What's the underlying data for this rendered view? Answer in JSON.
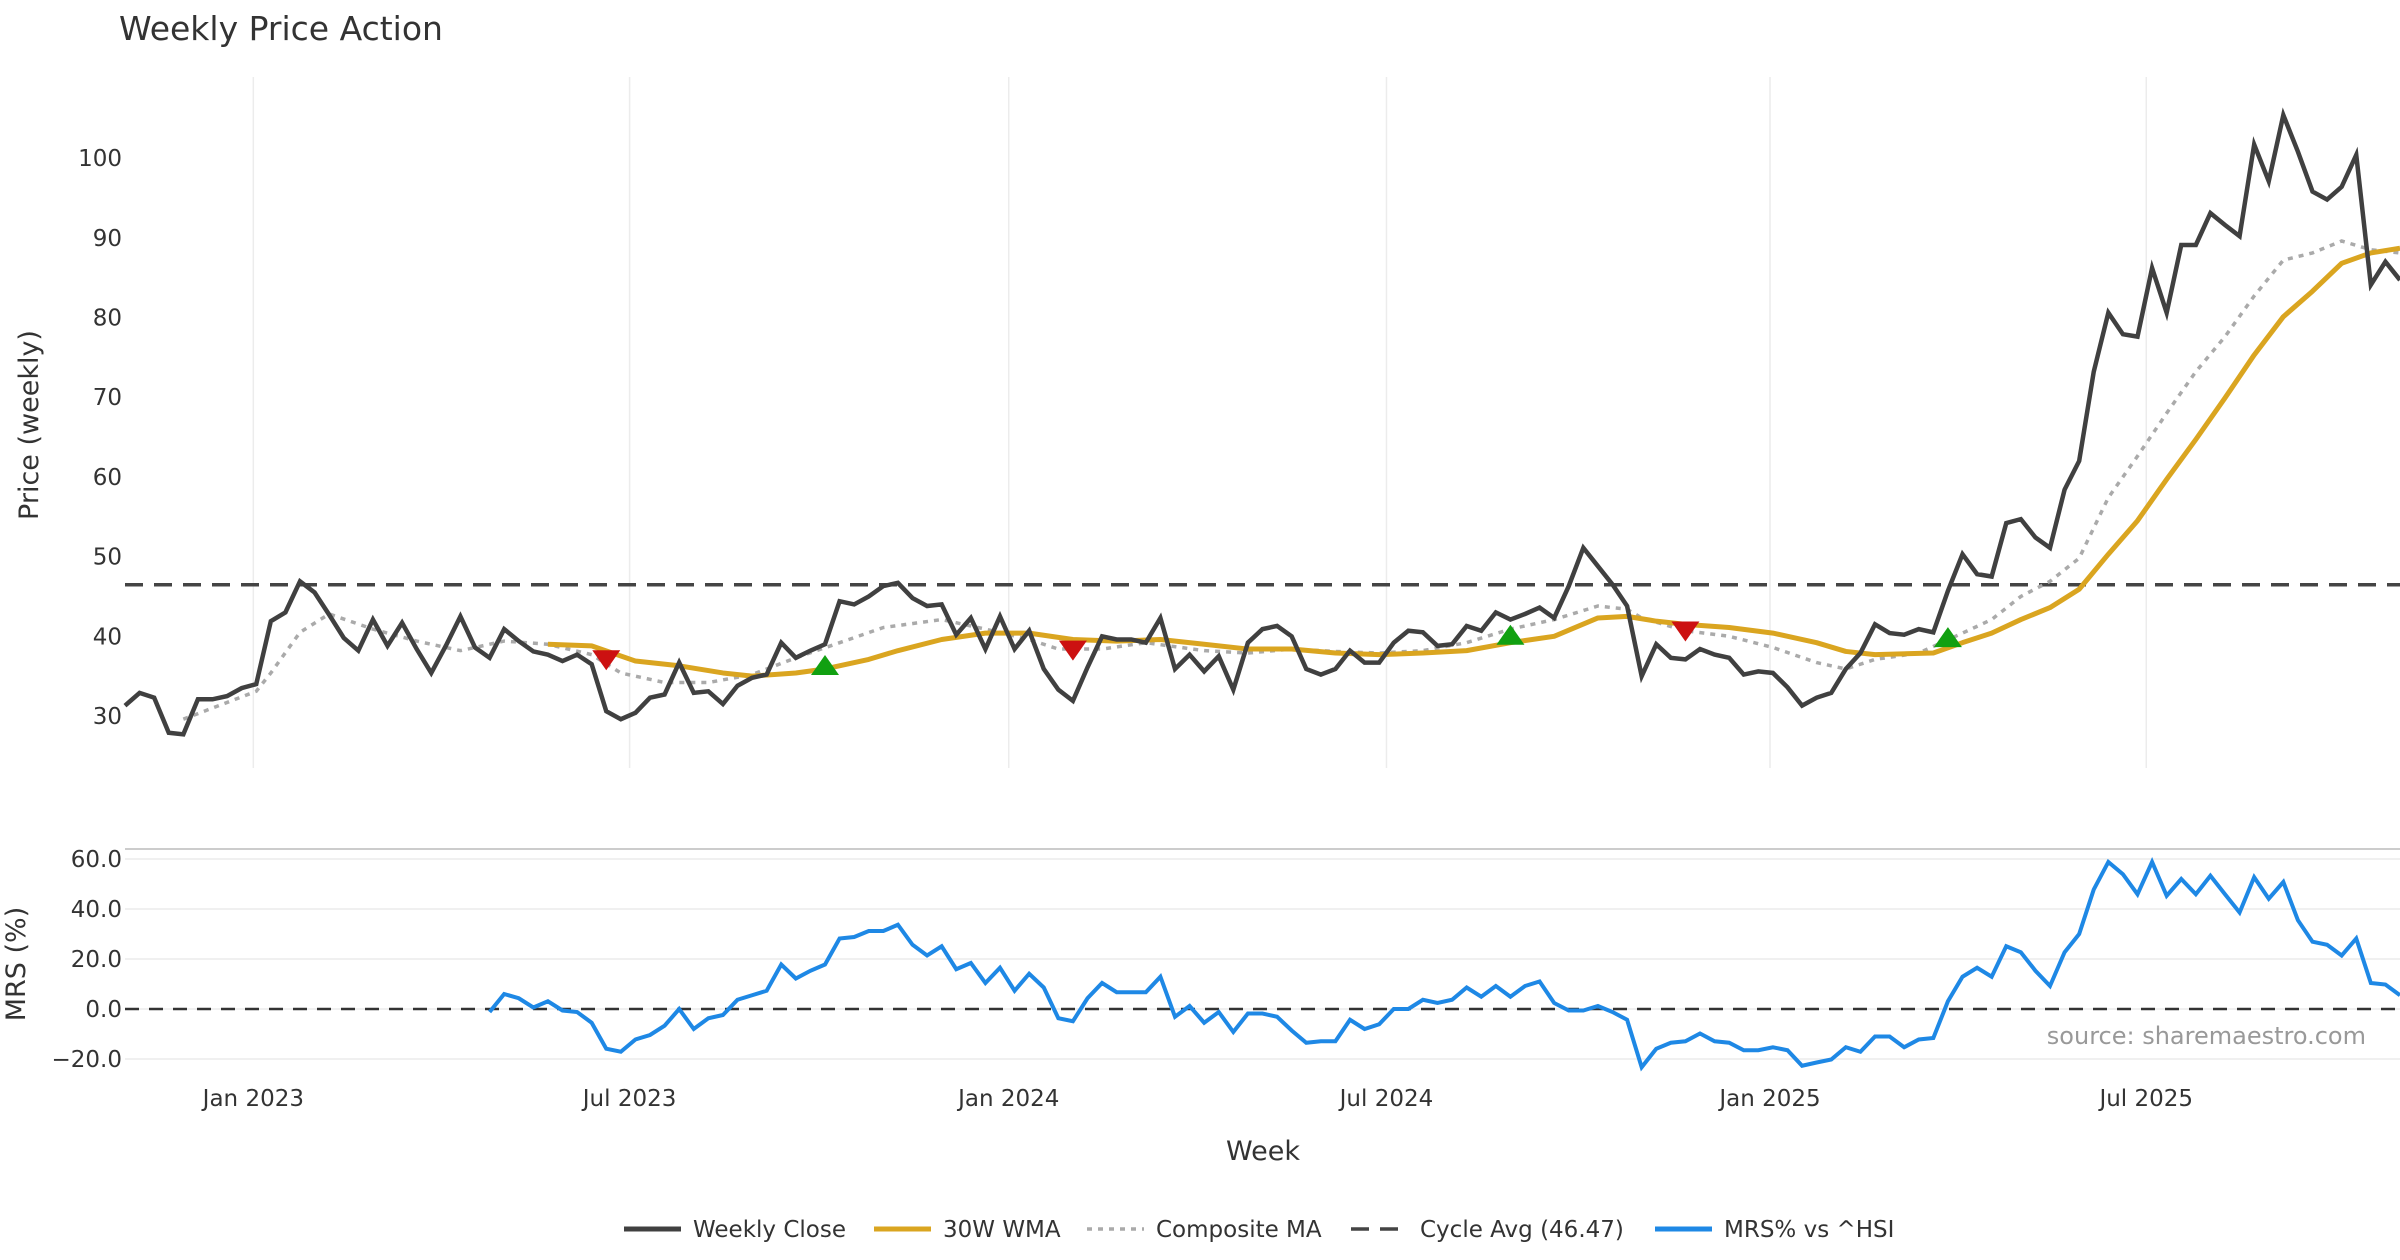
{
  "chart_data": [
    {
      "type": "line",
      "title": "Weekly Price Action",
      "ylabel": "Price (weekly)",
      "xlabel": "Week",
      "ylim": [
        23,
        110
      ],
      "yticks": [
        "30",
        "40",
        "50",
        "60",
        "70",
        "80",
        "90",
        "100"
      ],
      "ytick_values": [
        30,
        40,
        50,
        60,
        70,
        80,
        90,
        100
      ],
      "xticks": [
        "Jan 2023",
        "Jul 2023",
        "Jan 2024",
        "Jul 2024",
        "Jan 2025",
        "Jul 2025"
      ],
      "xtick_week_index": [
        8.8,
        34.6,
        60.6,
        86.5,
        112.8,
        138.6
      ],
      "grid": "vertical",
      "series": [
        {
          "name": "Weekly Close",
          "color": "#404040",
          "values": [
            31.3,
            32.9,
            32.3,
            27.9,
            27.7,
            32.1,
            32.1,
            32.5,
            33.5,
            34.0,
            41.9,
            43.0,
            46.9,
            45.5,
            42.7,
            39.8,
            38.2,
            42.1,
            38.8,
            41.7,
            38.4,
            35.4,
            38.8,
            42.5,
            38.6,
            37.3,
            40.9,
            39.4,
            38.1,
            37.7,
            36.9,
            37.7,
            36.5,
            30.6,
            29.6,
            30.4,
            32.3,
            32.7,
            36.7,
            32.9,
            33.1,
            31.5,
            33.8,
            34.8,
            35.2,
            39.2,
            37.3,
            38.2,
            39.0,
            44.4,
            44.0,
            45.0,
            46.3,
            46.7,
            44.8,
            43.8,
            44.0,
            40.2,
            42.3,
            38.4,
            42.5,
            38.4,
            40.7,
            35.9,
            33.3,
            31.9,
            36.1,
            40.0,
            39.6,
            39.6,
            39.2,
            42.3,
            35.9,
            37.7,
            35.6,
            37.5,
            33.3,
            39.2,
            40.9,
            41.3,
            40.0,
            35.9,
            35.2,
            35.9,
            38.2,
            36.7,
            36.7,
            39.2,
            40.7,
            40.5,
            38.8,
            39.0,
            41.3,
            40.7,
            43.0,
            42.1,
            42.8,
            43.6,
            42.3,
            46.3,
            51.1,
            48.8,
            46.5,
            43.8,
            35.0,
            39.0,
            37.3,
            37.1,
            38.4,
            37.7,
            37.3,
            35.2,
            35.6,
            35.4,
            33.6,
            31.3,
            32.3,
            32.9,
            35.9,
            37.9,
            41.5,
            40.4,
            40.2,
            40.9,
            40.5,
            45.7,
            50.3,
            47.8,
            47.5,
            54.2,
            54.7,
            52.4,
            51.1,
            58.4,
            62.0,
            73.2,
            80.6,
            77.9,
            77.6,
            86.2,
            80.6,
            89.1,
            89.1,
            93.1,
            91.6,
            90.2,
            101.7,
            97.1,
            105.4,
            100.8,
            95.8,
            94.8,
            96.4,
            100.4,
            84.1,
            87.0,
            84.7
          ]
        },
        {
          "name": "30W WMA",
          "color": "#DAA520",
          "points": [
            [
              29,
              39.0
            ],
            [
              32,
              38.8
            ],
            [
              35,
              36.9
            ],
            [
              38,
              36.3
            ],
            [
              41,
              35.4
            ],
            [
              43,
              35.0
            ],
            [
              46,
              35.4
            ],
            [
              48,
              35.9
            ],
            [
              51,
              37.1
            ],
            [
              53,
              38.2
            ],
            [
              56,
              39.6
            ],
            [
              59,
              40.4
            ],
            [
              62,
              40.4
            ],
            [
              65,
              39.6
            ],
            [
              68,
              39.4
            ],
            [
              71,
              39.6
            ],
            [
              74,
              39.0
            ],
            [
              77,
              38.4
            ],
            [
              80,
              38.4
            ],
            [
              83,
              37.9
            ],
            [
              86,
              37.7
            ],
            [
              89,
              37.9
            ],
            [
              92,
              38.2
            ],
            [
              95,
              39.2
            ],
            [
              98,
              40.0
            ],
            [
              101,
              42.3
            ],
            [
              103,
              42.5
            ],
            [
              105,
              41.9
            ],
            [
              107,
              41.5
            ],
            [
              110,
              41.1
            ],
            [
              113,
              40.4
            ],
            [
              116,
              39.2
            ],
            [
              118,
              38.1
            ],
            [
              120,
              37.7
            ],
            [
              124,
              37.9
            ],
            [
              126,
              39.2
            ],
            [
              128,
              40.4
            ],
            [
              130,
              42.1
            ],
            [
              132,
              43.6
            ],
            [
              134,
              45.9
            ],
            [
              136,
              50.3
            ],
            [
              138,
              54.5
            ],
            [
              140,
              59.7
            ],
            [
              142,
              64.7
            ],
            [
              144,
              69.9
            ],
            [
              146,
              75.3
            ],
            [
              148,
              80.1
            ],
            [
              150,
              83.3
            ],
            [
              152,
              86.8
            ],
            [
              154,
              88.1
            ],
            [
              156,
              88.7
            ]
          ]
        },
        {
          "name": "Composite MA",
          "color": "#AAAAAA",
          "points": [
            [
              4,
              29.6
            ],
            [
              6,
              31.0
            ],
            [
              9,
              33.1
            ],
            [
              10,
              35.4
            ],
            [
              12,
              40.5
            ],
            [
              14,
              42.8
            ],
            [
              17,
              40.9
            ],
            [
              20,
              39.4
            ],
            [
              23,
              38.2
            ],
            [
              26,
              39.4
            ],
            [
              29,
              39.0
            ],
            [
              32,
              37.7
            ],
            [
              34,
              35.4
            ],
            [
              37,
              34.2
            ],
            [
              40,
              34.2
            ],
            [
              43,
              35.2
            ],
            [
              46,
              37.3
            ],
            [
              49,
              39.2
            ],
            [
              52,
              41.1
            ],
            [
              56,
              42.1
            ],
            [
              59,
              40.9
            ],
            [
              62,
              39.6
            ],
            [
              64,
              38.4
            ],
            [
              67,
              38.4
            ],
            [
              70,
              39.2
            ],
            [
              74,
              38.2
            ],
            [
              77,
              37.9
            ],
            [
              80,
              38.4
            ],
            [
              83,
              38.1
            ],
            [
              86,
              37.9
            ],
            [
              89,
              38.2
            ],
            [
              92,
              39.2
            ],
            [
              95,
              40.9
            ],
            [
              98,
              42.1
            ],
            [
              101,
              43.8
            ],
            [
              103,
              43.4
            ],
            [
              104,
              42.3
            ],
            [
              107,
              40.7
            ],
            [
              110,
              40.0
            ],
            [
              113,
              38.6
            ],
            [
              116,
              36.7
            ],
            [
              118,
              35.9
            ],
            [
              120,
              37.1
            ],
            [
              123,
              37.9
            ],
            [
              126,
              40.4
            ],
            [
              128,
              42.1
            ],
            [
              130,
              45.0
            ],
            [
              132,
              46.9
            ],
            [
              134,
              49.8
            ],
            [
              136,
              57.4
            ],
            [
              138,
              62.6
            ],
            [
              140,
              68.0
            ],
            [
              142,
              73.2
            ],
            [
              144,
              77.6
            ],
            [
              146,
              82.7
            ],
            [
              148,
              87.2
            ],
            [
              150,
              88.1
            ],
            [
              152,
              89.6
            ],
            [
              154,
              88.5
            ],
            [
              156,
              88.1
            ]
          ]
        },
        {
          "name": "Cycle Avg (46.47)",
          "color": "#444444",
          "value": 46.47
        }
      ],
      "signals": [
        {
          "type": "sell",
          "week_index": 33,
          "value": 37.0,
          "color": "#CC1111"
        },
        {
          "type": "buy",
          "week_index": 48,
          "value": 36.4,
          "color": "#11A011"
        },
        {
          "type": "sell",
          "week_index": 65,
          "value": 38.2,
          "color": "#CC1111"
        },
        {
          "type": "buy",
          "week_index": 95,
          "value": 40.2,
          "color": "#11A011"
        },
        {
          "type": "sell",
          "week_index": 107,
          "value": 40.6,
          "color": "#CC1111"
        },
        {
          "type": "buy",
          "week_index": 125,
          "value": 39.9,
          "color": "#11A011"
        }
      ]
    },
    {
      "type": "line",
      "ylabel": "MRS (%)",
      "ylim": [
        -25,
        64
      ],
      "yticks": [
        "60.0",
        "40.0",
        "20.0",
        "0.0",
        "−20.0"
      ],
      "ytick_values": [
        60,
        40,
        20,
        0,
        -20
      ],
      "grid": "horizontal",
      "zero_line": 0,
      "series": [
        {
          "name": "MRS% vs ^HSI",
          "color": "#1E88E5",
          "start_week_index": 25,
          "values": [
            -1.2,
            6,
            4.3,
            0.6,
            3.1,
            -0.6,
            -1.2,
            -5.5,
            -15.9,
            -17.1,
            -12.2,
            -10.4,
            -6.7,
            0,
            -8,
            -3.7,
            -2.4,
            3.7,
            5.5,
            7.3,
            17.8,
            12.2,
            15.3,
            17.8,
            28.2,
            28.8,
            31.2,
            31.2,
            33.7,
            25.7,
            21.4,
            25.1,
            15.9,
            18.4,
            10.4,
            16.5,
            7.3,
            14.1,
            8.6,
            -3.7,
            -4.9,
            4.3,
            10.4,
            6.7,
            6.7,
            6.7,
            12.9,
            -3.1,
            1.2,
            -5.5,
            -1.2,
            -9.2,
            -1.8,
            -1.8,
            -3.1,
            -8.6,
            -13.5,
            -12.9,
            -12.9,
            -4.3,
            -8,
            -6.1,
            0,
            0,
            3.7,
            2.4,
            3.7,
            8.6,
            4.9,
            9.2,
            4.9,
            9.2,
            11,
            2.4,
            -0.6,
            -0.6,
            1.2,
            -1.2,
            -4.3,
            -23.3,
            -15.9,
            -13.5,
            -12.9,
            -9.8,
            -12.9,
            -13.5,
            -16.5,
            -16.5,
            -15.3,
            -16.5,
            -22.7,
            -21.4,
            -20.2,
            -15.3,
            -17.1,
            -11,
            -11,
            -15.3,
            -12.2,
            -11.6,
            3.1,
            12.9,
            16.5,
            12.9,
            25.1,
            22.7,
            15.3,
            9.2,
            22.7,
            30,
            47.8,
            58.8,
            53.9,
            45.9,
            58.8,
            45.3,
            52,
            45.9,
            53.3,
            45.9,
            38.6,
            52.7,
            44.1,
            50.8,
            35.5,
            26.9,
            25.7,
            21.4,
            28.2,
            10.4,
            9.8,
            5.5
          ]
        }
      ]
    }
  ],
  "source": "source: sharemaestro.com",
  "legend": [
    {
      "label": "Weekly Close",
      "color": "#404040",
      "style": "solid"
    },
    {
      "label": "30W WMA",
      "color": "#DAA520",
      "style": "solid"
    },
    {
      "label": "Composite MA",
      "color": "#AAAAAA",
      "style": "dotted"
    },
    {
      "label": "Cycle Avg (46.47)",
      "color": "#444444",
      "style": "dashed"
    },
    {
      "label": "MRS% vs ^HSI",
      "color": "#1E88E5",
      "style": "solid"
    }
  ]
}
